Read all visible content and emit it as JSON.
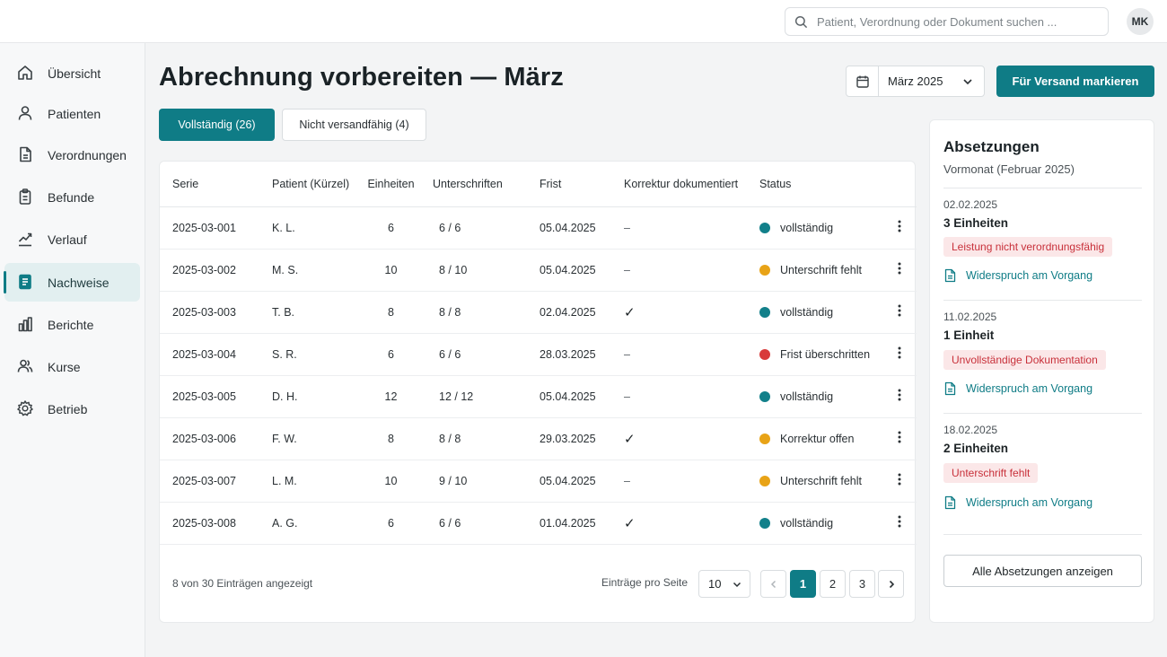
{
  "colors": {
    "accent": "#0f7c86",
    "status_green": "#12808a",
    "status_orange": "#e8a317",
    "status_red": "#d83a3a",
    "tag_bg": "#fbe7e8",
    "tag_text": "#c8303a"
  },
  "search": {
    "placeholder": "Patient, Verordnung oder Dokument suchen ...",
    "icon": "search-icon"
  },
  "user": {
    "initials": "MK"
  },
  "sidebar": {
    "items": [
      {
        "label": "Übersicht",
        "icon": "home-icon",
        "active": false
      },
      {
        "label": "Patienten",
        "icon": "user-icon",
        "active": false
      },
      {
        "label": "Verordnungen",
        "icon": "document-icon",
        "active": false
      },
      {
        "label": "Befunde",
        "icon": "clipboard-icon",
        "active": false
      },
      {
        "label": "Verlauf",
        "icon": "trend-chart-icon",
        "active": false
      },
      {
        "label": "Nachweise",
        "icon": "file-text-icon",
        "active": true
      },
      {
        "label": "Berichte",
        "icon": "bar-chart-icon",
        "active": false
      },
      {
        "label": "Kurse",
        "icon": "group-icon",
        "active": false
      },
      {
        "label": "Betrieb",
        "icon": "gear-icon",
        "active": false
      }
    ]
  },
  "header": {
    "title": "Abrechnung vorbereiten — März",
    "month_select": "März 2025",
    "primary_action": "Für Versand markieren"
  },
  "tabs": [
    {
      "label": "Vollständig (26)",
      "active": true
    },
    {
      "label": "Nicht versandfähig (4)",
      "active": false
    }
  ],
  "table": {
    "columns": [
      "Serie",
      "Patient (Kürzel)",
      "Einheiten",
      "Unterschriften",
      "Frist",
      "Korrektur dokumentiert",
      "Status"
    ],
    "rows": [
      {
        "serie": "2025-03-001",
        "patient": "K. L.",
        "einheiten": "6",
        "unterschriften": "6 / 6",
        "frist": "05.04.2025",
        "korrektur": "–",
        "status": "vollständig",
        "status_color": "green"
      },
      {
        "serie": "2025-03-002",
        "patient": "M. S.",
        "einheiten": "10",
        "unterschriften": "8 / 10",
        "frist": "05.04.2025",
        "korrektur": "–",
        "status": "Unterschrift fehlt",
        "status_color": "orange"
      },
      {
        "serie": "2025-03-003",
        "patient": "T. B.",
        "einheiten": "8",
        "unterschriften": "8 / 8",
        "frist": "02.04.2025",
        "korrektur": "✓",
        "status": "vollständig",
        "status_color": "green"
      },
      {
        "serie": "2025-03-004",
        "patient": "S. R.",
        "einheiten": "6",
        "unterschriften": "6 / 6",
        "frist": "28.03.2025",
        "korrektur": "–",
        "status": "Frist überschritten",
        "status_color": "red"
      },
      {
        "serie": "2025-03-005",
        "patient": "D. H.",
        "einheiten": "12",
        "unterschriften": "12 / 12",
        "frist": "05.04.2025",
        "korrektur": "–",
        "status": "vollständig",
        "status_color": "green"
      },
      {
        "serie": "2025-03-006",
        "patient": "F. W.",
        "einheiten": "8",
        "unterschriften": "8 / 8",
        "frist": "29.03.2025",
        "korrektur": "✓",
        "status": "Korrektur offen",
        "status_color": "orange"
      },
      {
        "serie": "2025-03-007",
        "patient": "L. M.",
        "einheiten": "10",
        "unterschriften": "9 / 10",
        "frist": "05.04.2025",
        "korrektur": "–",
        "status": "Unterschrift fehlt",
        "status_color": "orange"
      },
      {
        "serie": "2025-03-008",
        "patient": "A. G.",
        "einheiten": "6",
        "unterschriften": "6 / 6",
        "frist": "01.04.2025",
        "korrektur": "✓",
        "status": "vollständig",
        "status_color": "green"
      }
    ],
    "footer_info": "8 von 30 Einträgen angezeigt",
    "per_page_label": "Einträge pro Seite",
    "per_page_value": "10",
    "pages": [
      "1",
      "2",
      "3"
    ],
    "current_page": "1"
  },
  "panel": {
    "title": "Absetzungen",
    "subtitle": "Vormonat (Februar 2025)",
    "entries": [
      {
        "date": "02.02.2025",
        "units": "3 Einheiten",
        "reason": "Leistung nicht verordnungsfähig",
        "link": "Widerspruch am Vorgang"
      },
      {
        "date": "11.02.2025",
        "units": "1 Einheit",
        "reason": "Unvollständige Dokumentation",
        "link": "Widerspruch am Vorgang"
      },
      {
        "date": "18.02.2025",
        "units": "2 Einheiten",
        "reason": "Unterschrift fehlt",
        "link": "Widerspruch am Vorgang"
      }
    ],
    "all_button": "Alle Absetzungen anzeigen"
  }
}
